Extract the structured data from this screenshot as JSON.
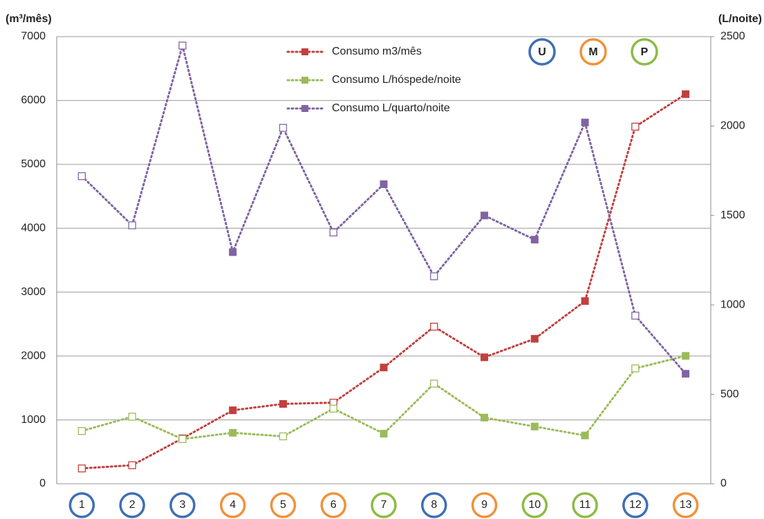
{
  "chart_data": {
    "type": "line",
    "y_label": "(m³/mês)",
    "y2_label": "(L/noite)",
    "categories": [
      "1",
      "2",
      "3",
      "4",
      "5",
      "6",
      "7",
      "8",
      "9",
      "10",
      "11",
      "12",
      "13"
    ],
    "category_colors": [
      "#3d6fb5",
      "#3d6fb5",
      "#3d6fb5",
      "#f0913a",
      "#f0913a",
      "#f0913a",
      "#8cbc45",
      "#3d6fb5",
      "#f0913a",
      "#8cbc45",
      "#8cbc45",
      "#3d6fb5",
      "#f0913a"
    ],
    "groups": [
      {
        "label": "U",
        "color": "#3d6fb5"
      },
      {
        "label": "M",
        "color": "#f0913a"
      },
      {
        "label": "P",
        "color": "#8cbc45"
      }
    ],
    "series": [
      {
        "name": "Consumo m3/mês",
        "color": "#c0403e",
        "values": [
          240,
          290,
          710,
          1150,
          1250,
          1270,
          1820,
          2460,
          1980,
          2270,
          2860,
          5590,
          6100
        ],
        "filled": [
          false,
          false,
          false,
          true,
          true,
          false,
          true,
          false,
          true,
          true,
          true,
          false,
          true
        ]
      },
      {
        "name": "Consumo L/hóspede/noite",
        "color": "#9bbb59",
        "axis": "y2",
        "values": [
          295,
          375,
          250,
          285,
          265,
          420,
          280,
          560,
          370,
          320,
          270,
          645,
          715
        ],
        "filled": [
          false,
          false,
          false,
          true,
          false,
          false,
          true,
          false,
          true,
          true,
          true,
          false,
          true
        ]
      },
      {
        "name": "Consumo L/quarto/noite",
        "color": "#8064a2",
        "axis": "y2",
        "values": [
          1720,
          1445,
          2450,
          1295,
          1990,
          1405,
          1675,
          1160,
          1500,
          1365,
          2020,
          940,
          615
        ],
        "filled": [
          false,
          false,
          false,
          true,
          false,
          false,
          true,
          false,
          true,
          true,
          true,
          false,
          true
        ]
      }
    ],
    "ylim": [
      0,
      7000
    ],
    "yticks": [
      0,
      1000,
      2000,
      3000,
      4000,
      5000,
      6000,
      7000
    ],
    "y2lim": [
      0,
      2500
    ],
    "y2ticks": [
      0,
      500,
      1000,
      1500,
      2000,
      2500
    ],
    "grid": true,
    "legend": "top"
  }
}
